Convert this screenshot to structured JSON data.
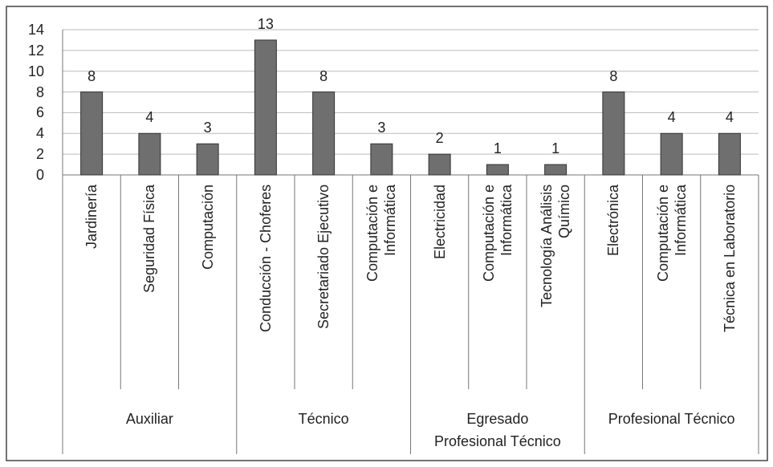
{
  "chart_data": {
    "type": "bar",
    "color": "#6f6f6f",
    "ylim": [
      0,
      14
    ],
    "yticks": [
      0,
      2,
      4,
      6,
      8,
      10,
      12,
      14
    ],
    "grid": true,
    "groups": [
      {
        "name": "Auxiliar",
        "categories": [
          "Jardinería",
          "Seguridad Física",
          "Computación"
        ],
        "values": [
          8,
          4,
          3
        ]
      },
      {
        "name": "Técnico",
        "categories": [
          "Conducción - Choferes",
          "Secretariado Ejecutivo",
          "Computación e Informática"
        ],
        "values": [
          13,
          8,
          3
        ]
      },
      {
        "name": "Egresado Profesional Técnico",
        "categories": [
          "Electricidad",
          "Computación e Informática",
          "Tecnología Análisis Químico"
        ],
        "values": [
          2,
          1,
          1
        ]
      },
      {
        "name": "Profesional Técnico",
        "categories": [
          "Electrónica",
          "Computación e Informática",
          "Técnica en Laboratorio"
        ],
        "values": [
          8,
          4,
          4
        ]
      }
    ]
  }
}
